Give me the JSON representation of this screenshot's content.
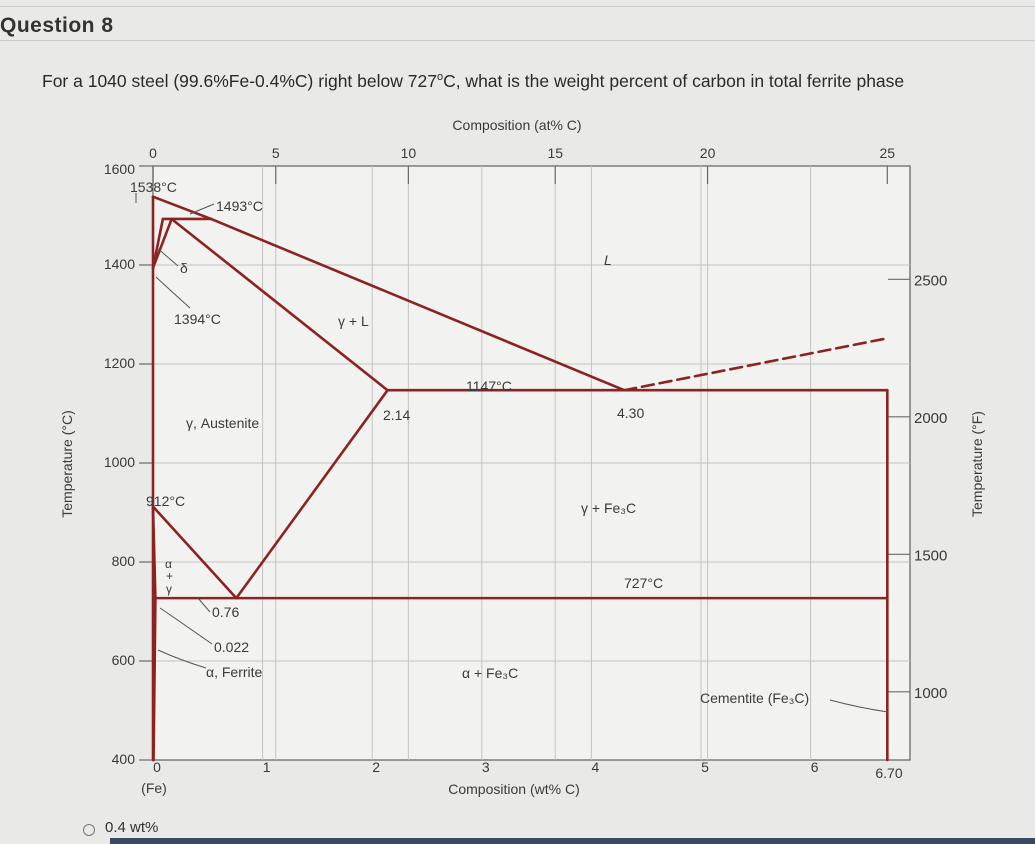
{
  "question": {
    "title": "Question 8",
    "text_before": "For a 1040 steel (99.6%Fe-0.4%C) right below 727",
    "superscript": "o",
    "text_after": "C, what is the weight percent of carbon in total ferrite phase"
  },
  "answer_option": {
    "label": "0.4 wt%"
  },
  "chart_data": {
    "type": "line",
    "title": "",
    "x_axis": {
      "label": "Composition (wt% C)",
      "range": [
        0,
        7.0
      ],
      "ticks": [
        0,
        1,
        2,
        3,
        4,
        5,
        6
      ],
      "tick_labels": [
        "0",
        "1",
        "2",
        "3",
        "4",
        "5",
        "6"
      ],
      "end_label": "6.70",
      "origin_note": "(Fe)"
    },
    "top_axis": {
      "label": "Composition (at% C)",
      "ticks": [
        0,
        5,
        10,
        15,
        20,
        25
      ],
      "tick_positions_wt": [
        0,
        1.12,
        2.33,
        3.67,
        5.06,
        6.7
      ]
    },
    "y_axis_left": {
      "label": "Temperature (°C)",
      "range": [
        400,
        1600
      ],
      "ticks": [
        400,
        600,
        800,
        1000,
        1200,
        1400,
        1600
      ]
    },
    "y_axis_right": {
      "label": "Temperature (°F)",
      "ticks": [
        1000,
        1500,
        2000,
        2500
      ]
    },
    "grid": true,
    "phase_boundaries": [
      {
        "name": "liquidus-fe",
        "x": [
          0,
          0.53
        ],
        "y": [
          1538,
          1493
        ]
      },
      {
        "name": "liquidus-austenite",
        "x": [
          0.53,
          4.3
        ],
        "y": [
          1493,
          1147
        ]
      },
      {
        "name": "solidus",
        "x": [
          0.17,
          2.14
        ],
        "y": [
          1493,
          1147
        ]
      },
      {
        "name": "delta-left",
        "x": [
          0,
          0.09
        ],
        "y": [
          1394,
          1493
        ]
      },
      {
        "name": "delta-right",
        "x": [
          0,
          0.17
        ],
        "y": [
          1394,
          1493
        ]
      },
      {
        "name": "peritectic-line",
        "x": [
          0.09,
          0.53
        ],
        "y": [
          1493,
          1493
        ]
      },
      {
        "name": "eutectic-line",
        "x": [
          2.14,
          6.7
        ],
        "y": [
          1147,
          1147
        ]
      },
      {
        "name": "eutectoid-line",
        "x": [
          0.022,
          6.7
        ],
        "y": [
          727,
          727
        ]
      },
      {
        "name": "acm-line",
        "x": [
          0.76,
          2.14
        ],
        "y": [
          727,
          1147
        ]
      },
      {
        "name": "a3-line",
        "x": [
          0,
          0.76
        ],
        "y": [
          912,
          727
        ]
      },
      {
        "name": "alpha-upper",
        "x": [
          0,
          0.022
        ],
        "y": [
          912,
          727
        ]
      },
      {
        "name": "alpha-solvus",
        "x": [
          0.022,
          0.005
        ],
        "y": [
          727,
          400
        ]
      },
      {
        "name": "fe-axis",
        "x": [
          0,
          0
        ],
        "y": [
          400,
          1538
        ]
      },
      {
        "name": "cementite-line",
        "x": [
          6.7,
          6.7
        ],
        "y": [
          1147,
          400
        ]
      }
    ],
    "dashed_boundaries": [
      {
        "name": "cementite-liquidus",
        "x": [
          4.3,
          6.7
        ],
        "y": [
          1147,
          1252
        ]
      }
    ],
    "annotations": [
      {
        "text": "1538°C"
      },
      {
        "text": "1493°C"
      },
      {
        "text": "1394°C"
      },
      {
        "text": "1147°C"
      },
      {
        "text": "912°C"
      },
      {
        "text": "727°C"
      },
      {
        "text": "2.14"
      },
      {
        "text": "4.30"
      },
      {
        "text": "0.76"
      },
      {
        "text": "0.022"
      }
    ],
    "phase_labels": [
      {
        "text": "L"
      },
      {
        "text": "γ + L"
      },
      {
        "text": "δ"
      },
      {
        "text": "γ, Austenite"
      },
      {
        "text": "γ + Fe₃C"
      },
      {
        "text": "α + Fe₃C"
      },
      {
        "text": "α, Ferrite"
      },
      {
        "text": "Cementite (Fe₃C)"
      },
      {
        "text": "α"
      },
      {
        "text": "+"
      },
      {
        "text": "γ"
      }
    ]
  }
}
